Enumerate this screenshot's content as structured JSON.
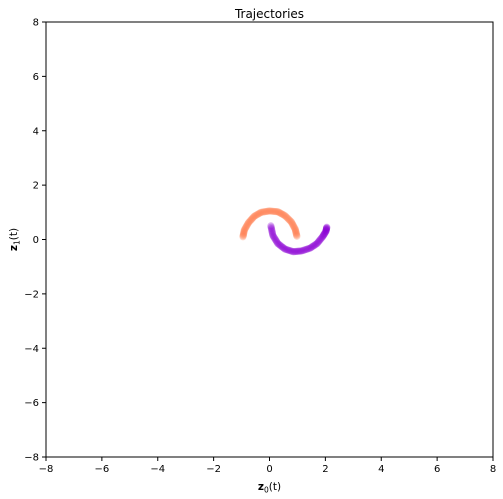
{
  "chart_data": {
    "type": "scatter",
    "title": "Trajectories",
    "xlabel": {
      "main": "z",
      "sub": "0",
      "suffix": "(t)"
    },
    "ylabel": {
      "main": "z",
      "sub": "1",
      "suffix": "(t)"
    },
    "xlim": [
      -8,
      8
    ],
    "ylim": [
      -8,
      8
    ],
    "xticks": [
      -8,
      -6,
      -4,
      -2,
      0,
      2,
      4,
      6,
      8
    ],
    "yticks": [
      -8,
      -6,
      -4,
      -2,
      0,
      2,
      4,
      6,
      8
    ],
    "grid": false,
    "series": [
      {
        "color": "#ff7f50",
        "points": [
          [
            -0.95,
            0.1
          ],
          [
            -0.9,
            0.35
          ],
          [
            -0.75,
            0.62
          ],
          [
            -0.55,
            0.85
          ],
          [
            -0.3,
            1.0
          ],
          [
            0.0,
            1.05
          ],
          [
            0.3,
            1.02
          ],
          [
            0.55,
            0.88
          ],
          [
            0.78,
            0.65
          ],
          [
            0.92,
            0.38
          ],
          [
            0.98,
            0.12
          ]
        ]
      },
      {
        "color": "#8a00d4",
        "points": [
          [
            0.05,
            0.5
          ],
          [
            0.12,
            0.15
          ],
          [
            0.3,
            -0.15
          ],
          [
            0.55,
            -0.35
          ],
          [
            0.85,
            -0.45
          ],
          [
            1.15,
            -0.42
          ],
          [
            1.45,
            -0.32
          ],
          [
            1.7,
            -0.15
          ],
          [
            1.9,
            0.1
          ],
          [
            2.02,
            0.3
          ],
          [
            2.05,
            0.45
          ]
        ]
      }
    ]
  }
}
